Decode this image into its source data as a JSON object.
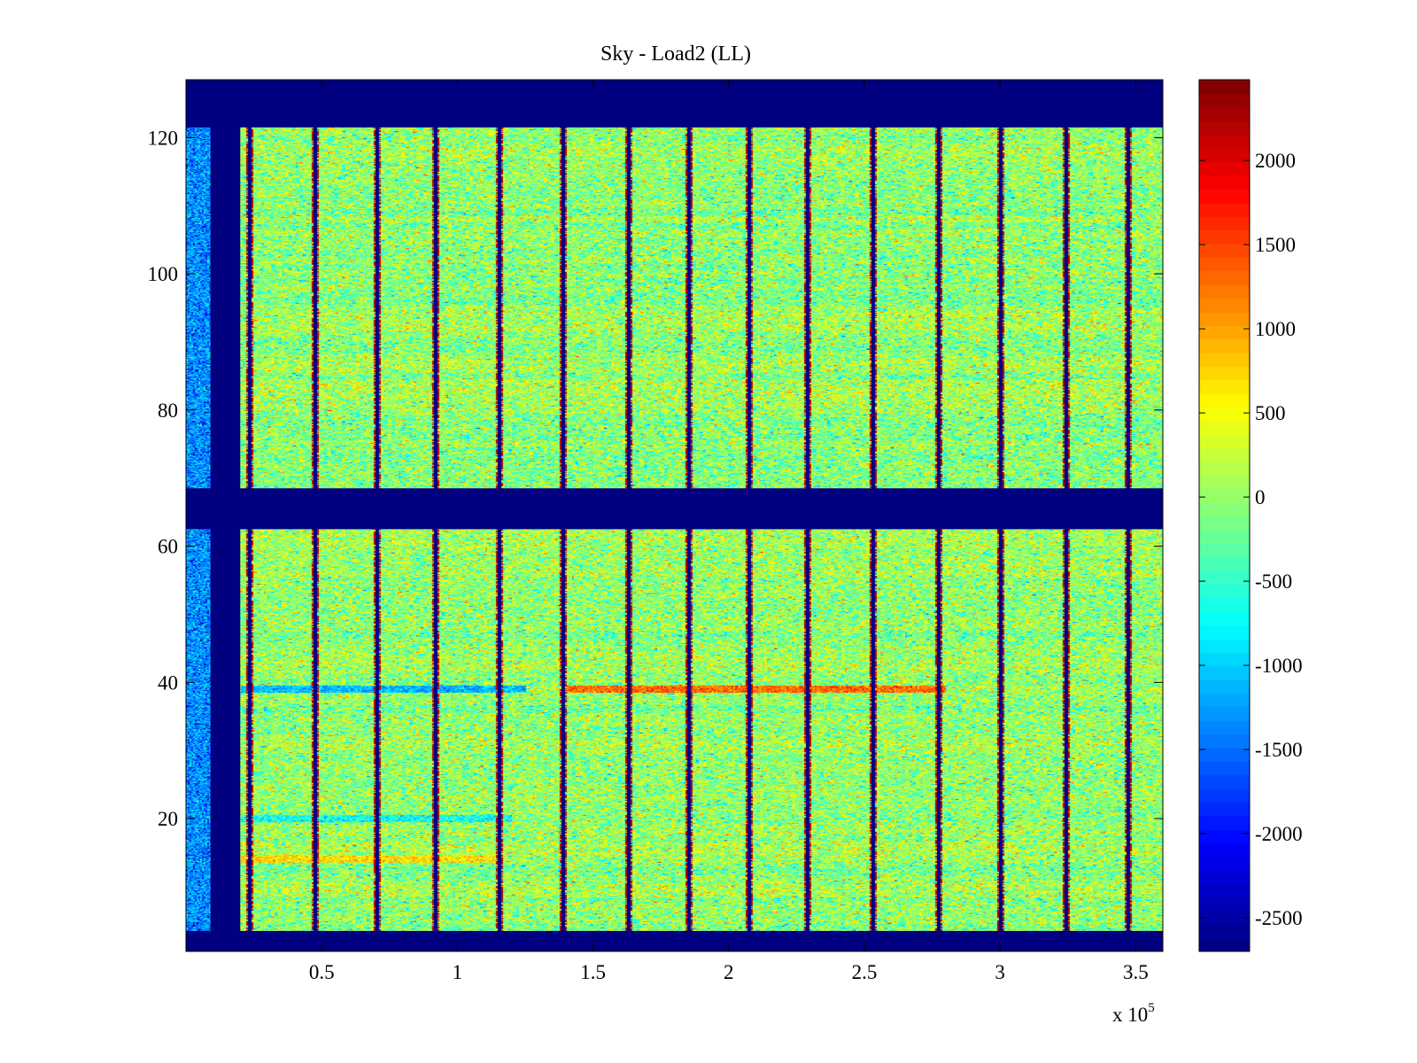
{
  "chart_data": {
    "type": "heatmap",
    "title": "Sky - Load2 (LL)",
    "xlabel": "",
    "ylabel": "",
    "x_multiplier_base": "x 10",
    "x_multiplier_exponent": "5",
    "xlim": [
      0,
      3.6
    ],
    "ylim": [
      0.5,
      128.5
    ],
    "x_ticks": [
      0.5,
      1,
      1.5,
      2,
      2.5,
      3,
      3.5
    ],
    "x_tick_labels": [
      "0.5",
      "1",
      "1.5",
      "2",
      "2.5",
      "3",
      "3.5"
    ],
    "y_ticks": [
      20,
      40,
      60,
      80,
      100,
      120
    ],
    "y_tick_labels": [
      "20",
      "40",
      "60",
      "80",
      "100",
      "120"
    ],
    "colorbar": {
      "colormap": "jet",
      "range": [
        -2700,
        2480
      ],
      "ticks": [
        -2500,
        -2000,
        -1500,
        -1000,
        -500,
        0,
        500,
        1000,
        1500,
        2000
      ],
      "tick_labels": [
        "-2500",
        "-2000",
        "-1500",
        "-1000",
        "-500",
        "0",
        "500",
        "1000",
        "1500",
        "2000"
      ]
    },
    "background_value": -2700,
    "masked_rows": [
      [
        0.5,
        3.5
      ],
      [
        62.5,
        68.5
      ],
      [
        121.5,
        128.5
      ]
    ],
    "masked_columns": [
      [
        0.09,
        0.2
      ]
    ],
    "left_strip": {
      "x_range": [
        0,
        0.09
      ],
      "typical_value": -1300
    },
    "field": {
      "typical_value": 0,
      "spread": 450
    },
    "scan_boundaries_x": [
      0.23,
      0.47,
      0.7,
      0.92,
      1.15,
      1.39,
      1.63,
      1.85,
      2.07,
      2.29,
      2.53,
      2.77,
      3.0,
      3.24,
      3.47
    ],
    "notable_rows": [
      {
        "row": 39,
        "x_range": [
          0.2,
          1.25
        ],
        "value": -1100
      },
      {
        "row": 39,
        "x_range": [
          1.4,
          2.8
        ],
        "value": 1300
      },
      {
        "row": 14,
        "x_range": [
          0.2,
          1.15
        ],
        "value": 700
      },
      {
        "row": 20,
        "x_range": [
          0.2,
          1.2
        ],
        "value": -700
      }
    ]
  }
}
